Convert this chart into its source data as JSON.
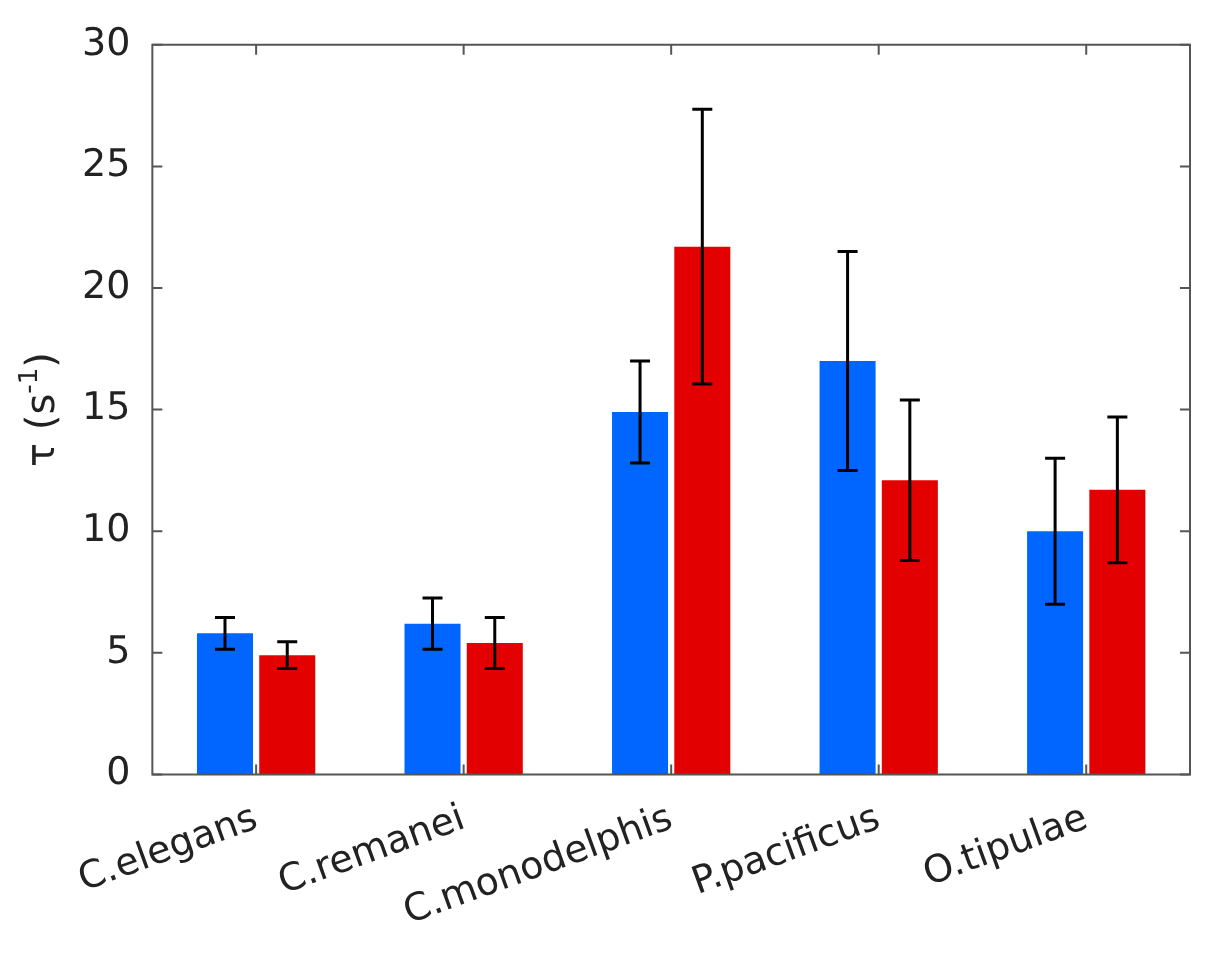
{
  "chart_data": {
    "type": "bar",
    "ylabel": "τ (s$^{-1}$)",
    "categories": [
      "C.elegans",
      "C.remanei",
      "C.monodelphis",
      "P.pacificus",
      "O.tipulae"
    ],
    "series": [
      {
        "color": "#0066ff",
        "values": [
          5.8,
          6.2,
          14.9,
          17.0,
          10.0
        ],
        "errors": [
          0.65,
          1.05,
          2.1,
          4.5,
          3.0
        ]
      },
      {
        "color": "#e30000",
        "values": [
          4.9,
          5.4,
          21.7,
          12.1,
          11.7
        ],
        "errors": [
          0.55,
          1.05,
          5.65,
          3.3,
          3.0
        ]
      }
    ],
    "ylim": [
      0,
      30
    ],
    "yticks": [
      0,
      5,
      10,
      15,
      20,
      25,
      30
    ]
  }
}
